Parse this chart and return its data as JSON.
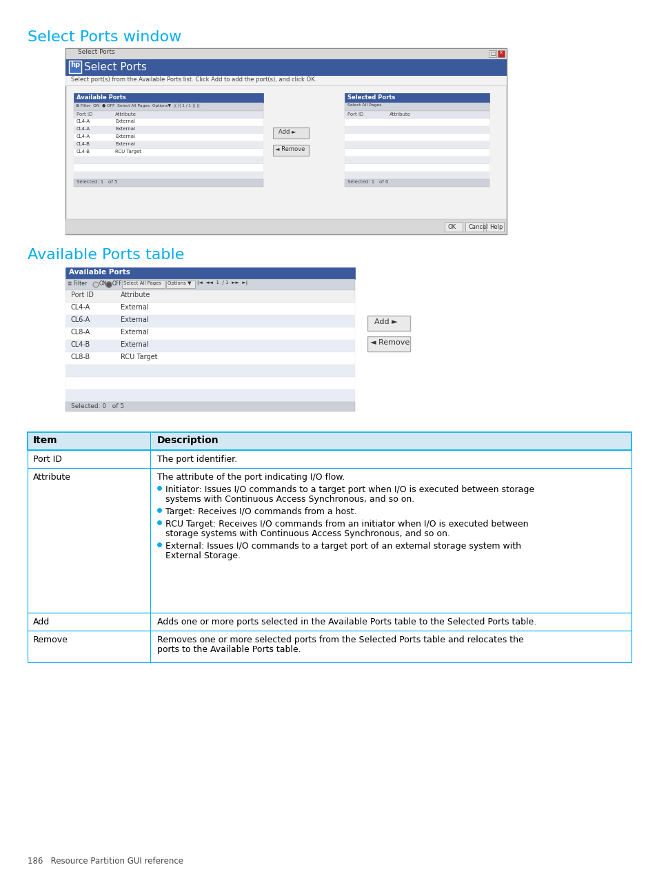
{
  "page_bg": "#ffffff",
  "title1": "Select Ports window",
  "title2": "Available Ports table",
  "title_color": "#00AEEF",
  "title_fontsize": 16,
  "page_number_text": "186   Resource Partition GUI reference",
  "select_ports_window": {
    "left_rows": [
      [
        "CL4-A",
        "External"
      ],
      [
        "CL4-A",
        "External"
      ],
      [
        "CL4-A",
        "External"
      ],
      [
        "CL4-B",
        "External"
      ],
      [
        "CL4-B",
        "RCU Target"
      ],
      [
        "",
        ""
      ],
      [
        "",
        ""
      ],
      [
        "",
        ""
      ]
    ]
  },
  "available_ports_table": {
    "rows": [
      [
        "CL4-A",
        "External"
      ],
      [
        "CL6-A",
        "External"
      ],
      [
        "CL8-A",
        "External"
      ],
      [
        "CL4-B",
        "External"
      ],
      [
        "CL8-B",
        "RCU Target"
      ],
      [
        "",
        ""
      ],
      [
        "",
        ""
      ],
      [
        "",
        ""
      ]
    ],
    "footer": "Selected: 0   of 5"
  },
  "desc_rows": [
    {
      "item": "Port ID",
      "lines": [
        "The port identifier."
      ],
      "has_bullets": false
    },
    {
      "item": "Attribute",
      "lines": [
        "The attribute of the port indicating I/O flow.",
        "BULLET Initiator: Issues I/O commands to a target port when I/O is executed between storage",
        "    systems with Continuous Access Synchronous, and so on.",
        "BULLET Target: Receives I/O commands from a host.",
        "BULLET RCU Target: Receives I/O commands from an initiator when I/O is executed between",
        "    storage systems with Continuous Access Synchronous, and so on.",
        "BULLET External: Issues I/O commands to a target port of an external storage system with",
        "    External Storage."
      ],
      "has_bullets": true
    },
    {
      "item": "Add",
      "lines": [
        "Adds one or more ports selected in the Available Ports table to the Selected Ports table."
      ],
      "has_bullets": false
    },
    {
      "item": "Remove",
      "lines": [
        "Removes one or more selected ports from the Selected Ports table and relocates the",
        "ports to the Available Ports table."
      ],
      "has_bullets": false
    }
  ]
}
